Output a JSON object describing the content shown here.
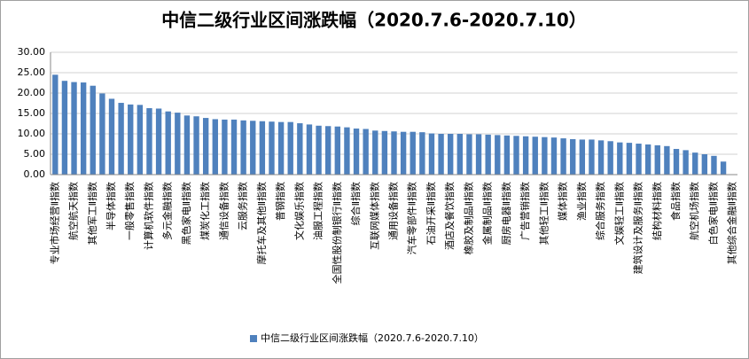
{
  "chart_data": {
    "type": "bar",
    "title": "中信二级行业区间涨跌幅（2020.7.6-2020.7.10）",
    "color": "#4f81bd",
    "grid": true,
    "legend": "bottom",
    "series": [
      {
        "name": "中信二级行业区间涨跌幅（2020.7.6-2020.7.10）",
        "color": "#4f81bd",
        "values": [
          24.5,
          23.0,
          22.7,
          22.6,
          21.8,
          19.9,
          18.6,
          17.6,
          17.2,
          17.1,
          16.3,
          16.2,
          15.5,
          15.2,
          14.5,
          14.3,
          13.9,
          13.6,
          13.5,
          13.5,
          13.3,
          13.2,
          13.1,
          13.0,
          12.9,
          12.9,
          12.6,
          12.3,
          12.0,
          11.9,
          11.8,
          11.6,
          11.3,
          11.2,
          10.8,
          10.7,
          10.6,
          10.5,
          10.5,
          10.4,
          10.1,
          10.0,
          10.0,
          10.0,
          9.9,
          9.9,
          9.8,
          9.7,
          9.6,
          9.5,
          9.4,
          9.3,
          9.2,
          9.1,
          8.9,
          8.7,
          8.6,
          8.6,
          8.4,
          8.2,
          7.9,
          7.8,
          7.6,
          7.4,
          7.2,
          7.0,
          6.3,
          6.0,
          5.4,
          5.0,
          4.6,
          3.2,
          0.1
        ]
      }
    ],
    "categories": [
      "专业市场经营Ⅱ指数",
      null,
      "航空航天指数",
      null,
      "其他军工Ⅱ指数",
      null,
      "半导体指数",
      null,
      "一般零售指数",
      null,
      "计算机软件指数",
      null,
      "多元金融指数",
      null,
      "黑色家电Ⅱ指数",
      null,
      "煤炭化工指数",
      null,
      "通信设备指数",
      null,
      "云服务指数",
      null,
      "摩托车及其他Ⅱ指数",
      null,
      "普钢指数",
      null,
      "文化娱乐指数",
      null,
      "油服工程指数",
      null,
      "全国性股份制银行Ⅱ指数",
      null,
      "综合Ⅱ指数",
      null,
      "互联网媒体指数",
      null,
      "通用设备指数",
      null,
      "汽车零部件Ⅱ指数",
      null,
      "石油开采Ⅱ指数",
      null,
      "酒店及餐饮指数",
      null,
      "橡胶及制品Ⅱ指数",
      null,
      "金属制品Ⅱ指数",
      null,
      "厨房电器Ⅱ指数",
      null,
      "广告营销指数",
      null,
      "其他轻工Ⅱ指数",
      null,
      "媒体指数",
      null,
      "渔业指数",
      null,
      "综合服务指数",
      null,
      "文娱轻工Ⅱ指数",
      null,
      "建筑设计及服务Ⅱ指数",
      null,
      "结构材料指数",
      null,
      "食品指数",
      null,
      "航空机场指数",
      null,
      "白色家电Ⅱ指数",
      null,
      "其他综合金融Ⅱ指数"
    ],
    "ylim": [
      0,
      30
    ],
    "yticks": [
      {
        "value": 0,
        "label": "0.00"
      },
      {
        "value": 5,
        "label": "5.00"
      },
      {
        "value": 10,
        "label": "10.00"
      },
      {
        "value": 15,
        "label": "15.00"
      },
      {
        "value": 20,
        "label": "20.00"
      },
      {
        "value": 25,
        "label": "25.00"
      },
      {
        "value": 30,
        "label": "30.00"
      }
    ]
  }
}
